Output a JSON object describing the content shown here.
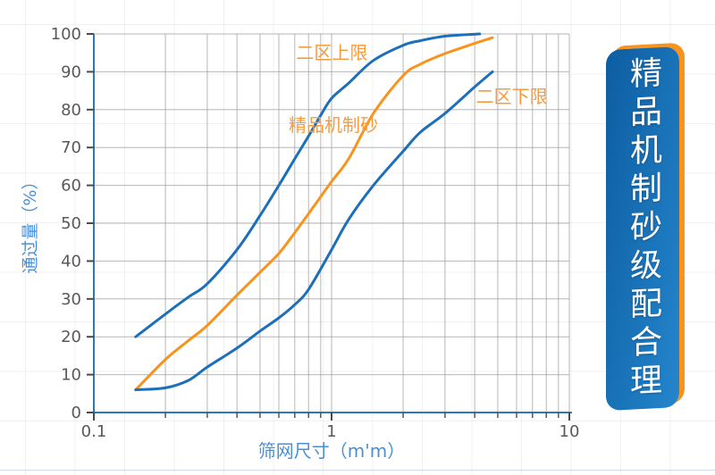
{
  "banner": {
    "text": "精品机制砂级配合理",
    "bg_top_color": "#2486cd",
    "bg_mid_color": "#1a73b8",
    "bg_bottom_color": "#0d5da2",
    "edge_color": "#f8941d",
    "text_color": "#ffffff"
  },
  "chart_data": {
    "type": "line",
    "x_scale": "log",
    "title": "",
    "xlabel": "筛网尺寸（m'm）",
    "ylabel": "通过量（%）",
    "xlim": [
      0.1,
      10
    ],
    "ylim": [
      0,
      100
    ],
    "x_tick_values": [
      0.1,
      1,
      10
    ],
    "x_tick_labels": [
      "0.1",
      "1",
      "10"
    ],
    "y_tick_values": [
      0,
      10,
      20,
      30,
      40,
      50,
      60,
      70,
      80,
      90,
      100
    ],
    "grid": true,
    "legend_position": "inline-labels",
    "axis_color": "#2b79bd",
    "grid_color": "#9e9e9e",
    "tick_color": "#4a4a4a",
    "tick_label_color": "#58595b",
    "axis_title_color": "#4a90d6",
    "annotation_color": "#f79b3f",
    "series": [
      {
        "key": "zone2-upper-limit",
        "name": "二区上限",
        "color": "#1c6fb8",
        "points": [
          [
            0.15,
            20
          ],
          [
            0.2,
            26
          ],
          [
            0.25,
            30.5
          ],
          [
            0.3,
            34
          ],
          [
            0.4,
            43
          ],
          [
            0.5,
            52
          ],
          [
            0.6,
            60
          ],
          [
            0.7,
            67
          ],
          [
            0.8,
            73
          ],
          [
            0.9,
            78.5
          ],
          [
            1.0,
            83
          ],
          [
            1.18,
            87
          ],
          [
            1.5,
            93
          ],
          [
            2.0,
            97
          ],
          [
            2.36,
            98.2
          ],
          [
            3.0,
            99.4
          ],
          [
            4.2,
            100
          ]
        ]
      },
      {
        "key": "premium-machine-made-sand",
        "name": "精品机制砂",
        "color": "#f8941d",
        "points": [
          [
            0.15,
            6
          ],
          [
            0.2,
            14
          ],
          [
            0.25,
            19
          ],
          [
            0.3,
            23
          ],
          [
            0.4,
            31
          ],
          [
            0.5,
            37
          ],
          [
            0.6,
            42
          ],
          [
            0.7,
            47.5
          ],
          [
            0.8,
            52.5
          ],
          [
            1.0,
            61
          ],
          [
            1.18,
            67
          ],
          [
            1.5,
            79
          ],
          [
            2.0,
            89
          ],
          [
            2.36,
            92
          ],
          [
            3.0,
            94.8
          ],
          [
            4.0,
            97.5
          ],
          [
            4.75,
            99
          ]
        ]
      },
      {
        "key": "zone2-lower-limit",
        "name": "二区下限",
        "color": "#1c6fb8",
        "points": [
          [
            0.15,
            6
          ],
          [
            0.2,
            6.5
          ],
          [
            0.25,
            8.5
          ],
          [
            0.3,
            12
          ],
          [
            0.4,
            17
          ],
          [
            0.5,
            21.5
          ],
          [
            0.6,
            25
          ],
          [
            0.7,
            28.5
          ],
          [
            0.8,
            32.5
          ],
          [
            1.0,
            43
          ],
          [
            1.18,
            51
          ],
          [
            1.5,
            60
          ],
          [
            2.0,
            69
          ],
          [
            2.36,
            74
          ],
          [
            3.0,
            79
          ],
          [
            4.0,
            86
          ],
          [
            4.75,
            90
          ]
        ]
      }
    ],
    "annotations": [
      {
        "text": "二区上限",
        "x": 0.71,
        "y": 95
      },
      {
        "text": "精品机制砂",
        "x": 0.66,
        "y": 76
      },
      {
        "text": "二区下限",
        "x": 4.05,
        "y": 83.5
      }
    ]
  }
}
